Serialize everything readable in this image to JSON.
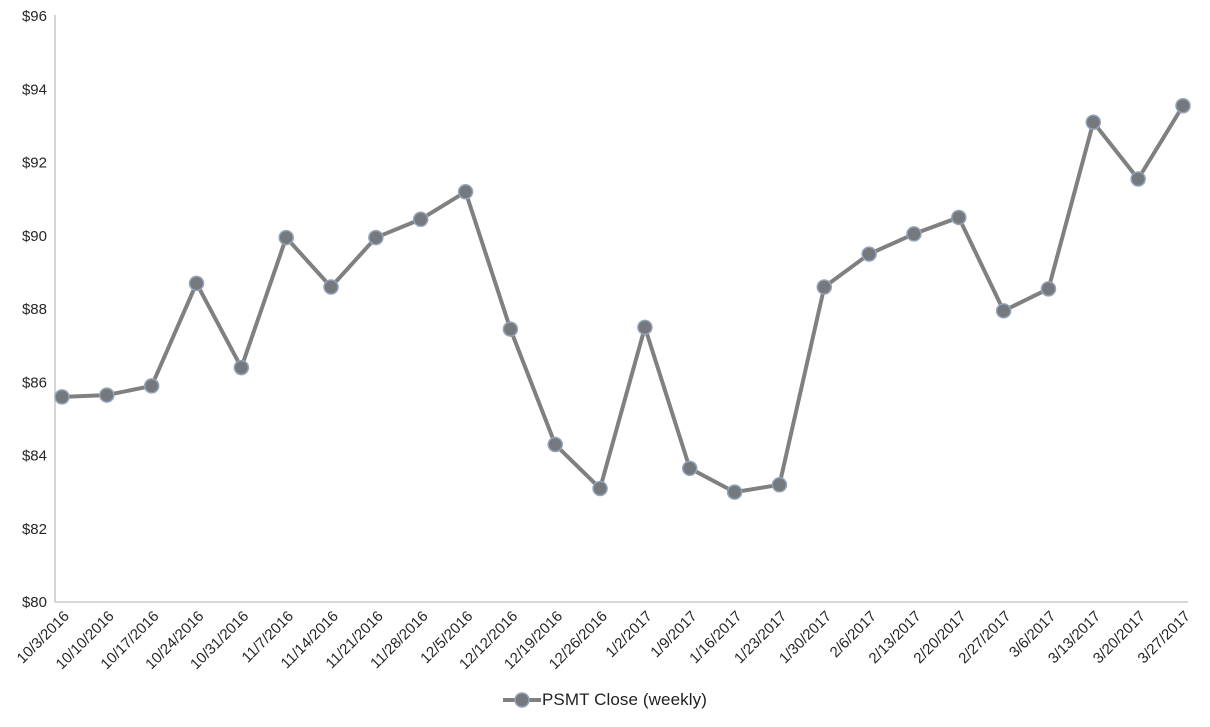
{
  "chart_data": {
    "type": "line",
    "title": "",
    "xlabel": "",
    "ylabel": "",
    "x": [
      "10/3/2016",
      "10/10/2016",
      "10/17/2016",
      "10/24/2016",
      "10/31/2016",
      "11/7/2016",
      "11/14/2016",
      "11/21/2016",
      "11/28/2016",
      "12/5/2016",
      "12/12/2016",
      "12/19/2016",
      "12/26/2016",
      "1/2/2017",
      "1/9/2017",
      "1/16/2017",
      "1/23/2017",
      "1/30/2017",
      "2/6/2017",
      "2/13/2017",
      "2/20/2017",
      "2/27/2017",
      "3/6/2017",
      "3/13/2017",
      "3/20/2017",
      "3/27/2017"
    ],
    "series": [
      {
        "name": "PSMT Close (weekly)",
        "values": [
          85.6,
          85.65,
          85.9,
          88.7,
          86.4,
          89.95,
          88.6,
          89.95,
          90.45,
          91.2,
          87.45,
          84.3,
          83.1,
          87.5,
          83.65,
          83.0,
          83.2,
          88.6,
          89.5,
          90.05,
          90.5,
          87.95,
          88.55,
          93.1,
          91.55,
          93.55
        ]
      }
    ],
    "ylim": [
      80,
      96
    ],
    "ytick_step": 2,
    "ytick_prefix": "$",
    "grid": false,
    "legend_position": "bottom",
    "x_label_rotation_deg": -45,
    "colors": {
      "line": "#808080",
      "marker_fill": "#75787c",
      "marker_stroke": "#93a3ba",
      "axis_line": "#bfbfbf",
      "tick_text": "#262626",
      "legend_text": "#1f1f1f"
    }
  }
}
